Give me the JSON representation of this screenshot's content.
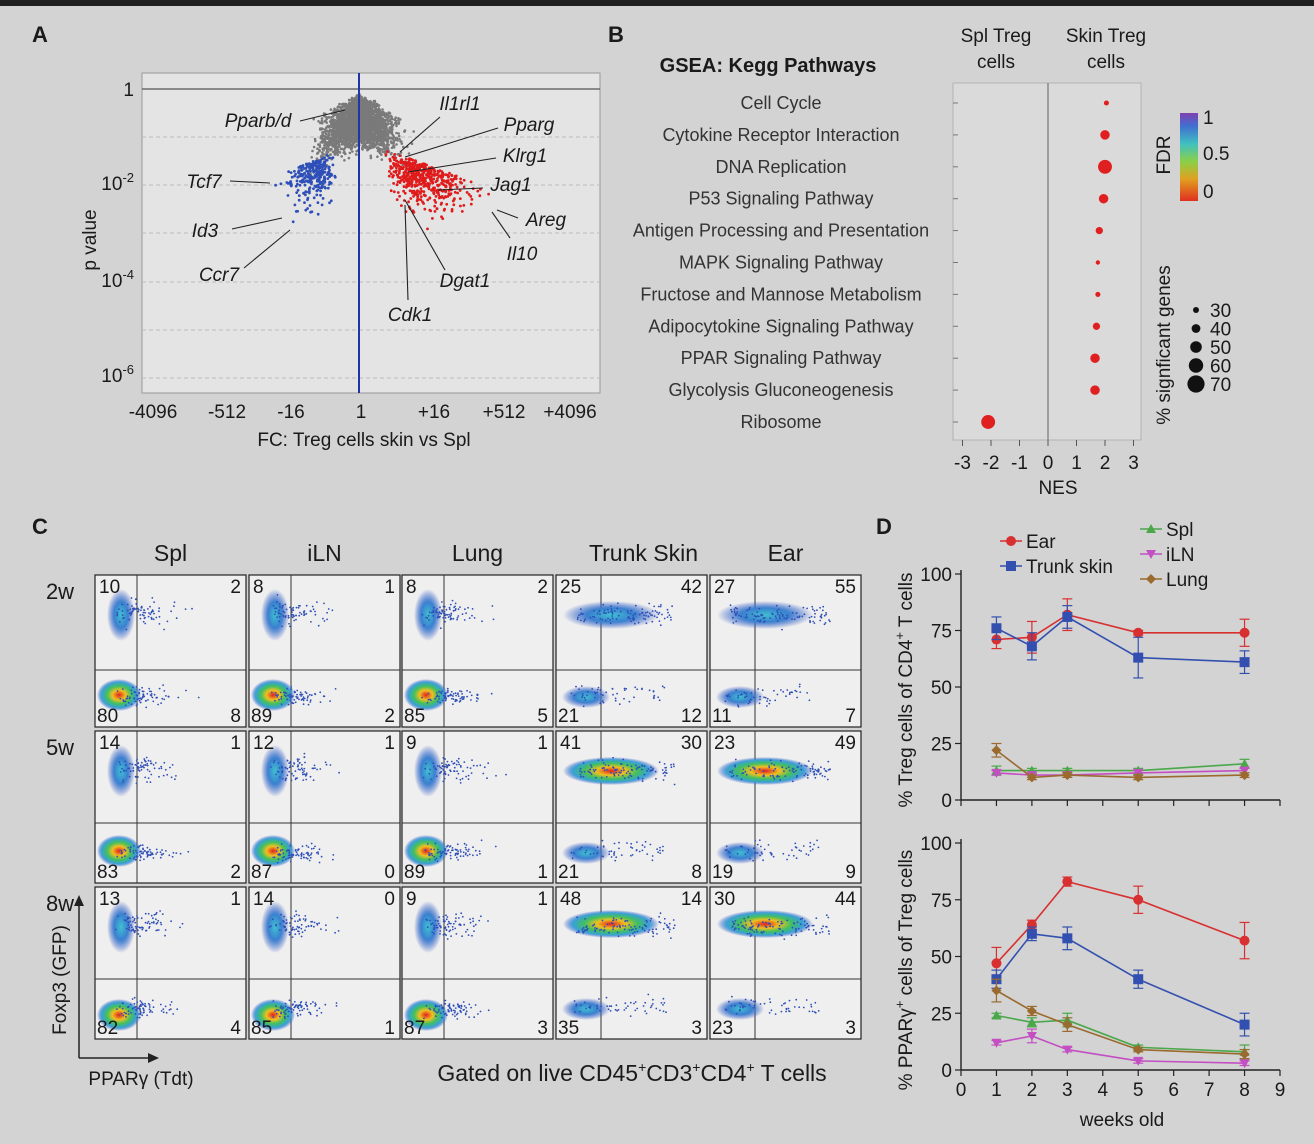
{
  "panels": {
    "a": "A",
    "b": "B",
    "c": "C",
    "d": "D"
  },
  "chart_data": [
    {
      "type": "scatter",
      "panel": "A",
      "xlabel": "FC: Treg cells skin vs Spl",
      "ylabel": "p value",
      "x_ticks": [
        "-4096",
        "-512",
        "-16",
        "1",
        "+16",
        "+512",
        "+4096"
      ],
      "y_ticks": [
        {
          "base": "1",
          "exp": ""
        },
        {
          "base": "10",
          "exp": "-2"
        },
        {
          "base": "10",
          "exp": "-4"
        },
        {
          "base": "10",
          "exp": "-6"
        }
      ],
      "labeled_genes": [
        {
          "name": "Pparb/d",
          "group": "down"
        },
        {
          "name": "Tcf7",
          "group": "down"
        },
        {
          "name": "Id3",
          "group": "down"
        },
        {
          "name": "Ccr7",
          "group": "down"
        },
        {
          "name": "Il1rl1",
          "group": "up"
        },
        {
          "name": "Pparg",
          "group": "up"
        },
        {
          "name": "Klrg1",
          "group": "up"
        },
        {
          "name": "Jag1",
          "group": "up"
        },
        {
          "name": "Areg",
          "group": "up"
        },
        {
          "name": "Il10",
          "group": "up"
        },
        {
          "name": "Dgat1",
          "group": "up"
        },
        {
          "name": "Cdk1",
          "group": "up"
        }
      ],
      "colors": {
        "up": "#e01b1b",
        "down": "#2f4fb8",
        "ns": "#7a7a7a",
        "axis_line": "#2234a8"
      }
    },
    {
      "type": "scatter",
      "panel": "B",
      "title": "GSEA: Kegg Pathways",
      "xlabel": "NES",
      "col_left": [
        "Spl Treg",
        "cells"
      ],
      "col_right": [
        "Skin Treg",
        "cells"
      ],
      "x_ticks": [
        "-3",
        "-2",
        "-1",
        "0",
        "1",
        "2",
        "3"
      ],
      "xlim": [
        -3,
        3
      ],
      "pathways": [
        {
          "name": "Cell Cycle",
          "nes": 2.05,
          "size": 30
        },
        {
          "name": "Cytokine Receptor Interaction",
          "nes": 2.0,
          "size": 50
        },
        {
          "name": "DNA Replication",
          "nes": 2.0,
          "size": 70
        },
        {
          "name": "P53 Signaling Pathway",
          "nes": 1.95,
          "size": 50
        },
        {
          "name": "Antigen Processing and Presentation",
          "nes": 1.8,
          "size": 40
        },
        {
          "name": "MAPK Signaling Pathway",
          "nes": 1.75,
          "size": 25
        },
        {
          "name": "Fructose and Mannose Metabolism",
          "nes": 1.75,
          "size": 30
        },
        {
          "name": "Adipocytokine Signaling Pathway",
          "nes": 1.7,
          "size": 40
        },
        {
          "name": "PPAR Signaling Pathway",
          "nes": 1.65,
          "size": 50
        },
        {
          "name": "Glycolysis Gluconeogenesis",
          "nes": 1.65,
          "size": 50
        },
        {
          "name": "Ribosome",
          "nes": -2.1,
          "size": 70
        }
      ],
      "fdr_legend": {
        "title": "FDR",
        "ticks": [
          "1",
          "0.5",
          "0"
        ]
      },
      "size_legend": {
        "title": "% signficant genes",
        "values": [
          "30",
          "40",
          "50",
          "60",
          "70"
        ]
      },
      "dot_color": "#e02020"
    },
    {
      "type": "scatter",
      "panel": "C",
      "xlabel": "PPARγ (Tdt)",
      "ylabel": "Foxp3 (GFP)",
      "gate_note": {
        "pre": "Gated on live CD45",
        "a": "CD3",
        "b": "CD4",
        "post": " T cells",
        "sup": "+"
      },
      "columns": [
        "Spl",
        "iLN",
        "Lung",
        "Trunk Skin",
        "Ear"
      ],
      "rows": [
        "2w",
        "5w",
        "8w"
      ],
      "quadrants": [
        [
          {
            "ul": "10",
            "ur": "2",
            "ll": "80",
            "lr": "8"
          },
          {
            "ul": "8",
            "ur": "1",
            "ll": "89",
            "lr": "2"
          },
          {
            "ul": "8",
            "ur": "2",
            "ll": "85",
            "lr": "5"
          },
          {
            "ul": "25",
            "ur": "42",
            "ll": "21",
            "lr": "12"
          },
          {
            "ul": "27",
            "ur": "55",
            "ll": "11",
            "lr": "7"
          }
        ],
        [
          {
            "ul": "14",
            "ur": "1",
            "ll": "83",
            "lr": "2"
          },
          {
            "ul": "12",
            "ur": "1",
            "ll": "87",
            "lr": "0"
          },
          {
            "ul": "9",
            "ur": "1",
            "ll": "89",
            "lr": "1"
          },
          {
            "ul": "41",
            "ur": "30",
            "ll": "21",
            "lr": "8"
          },
          {
            "ul": "23",
            "ur": "49",
            "ll": "19",
            "lr": "9"
          }
        ],
        [
          {
            "ul": "13",
            "ur": "1",
            "ll": "82",
            "lr": "4"
          },
          {
            "ul": "14",
            "ur": "0",
            "ll": "85",
            "lr": "1"
          },
          {
            "ul": "9",
            "ur": "1",
            "ll": "87",
            "lr": "3"
          },
          {
            "ul": "48",
            "ur": "14",
            "ll": "35",
            "lr": "3"
          },
          {
            "ul": "30",
            "ur": "44",
            "ll": "23",
            "lr": "3"
          }
        ]
      ]
    },
    {
      "type": "line",
      "panel": "D-top",
      "ylabel": {
        "pre": "% Treg cells of CD4",
        "sup": "+",
        "post": " T cells"
      },
      "ylim": [
        0,
        100
      ],
      "y_ticks": [
        "0",
        "25",
        "50",
        "75",
        "100"
      ],
      "xlim": [
        0,
        9
      ],
      "legend": [
        "Ear",
        "Trunk skin",
        "Spl",
        "iLN",
        "Lung"
      ],
      "series": [
        {
          "name": "Ear",
          "color": "#d83030",
          "marker": "circle",
          "x": [
            1,
            2,
            3,
            5,
            8
          ],
          "y": [
            71,
            72,
            82,
            74,
            74
          ],
          "err": [
            4,
            7,
            7,
            1,
            6
          ]
        },
        {
          "name": "Trunk skin",
          "color": "#3350b0",
          "marker": "square",
          "x": [
            1,
            2,
            3,
            5,
            8
          ],
          "y": [
            76,
            68,
            81,
            63,
            61
          ],
          "err": [
            5,
            6,
            5,
            9,
            5
          ]
        },
        {
          "name": "Spl",
          "color": "#4aa84a",
          "marker": "triangle",
          "x": [
            1,
            2,
            3,
            5,
            8
          ],
          "y": [
            13,
            13,
            13,
            13,
            16
          ],
          "err": [
            2,
            1,
            1,
            1,
            2
          ]
        },
        {
          "name": "iLN",
          "color": "#c34fc3",
          "marker": "triangle-down",
          "x": [
            1,
            2,
            3,
            5,
            8
          ],
          "y": [
            12,
            11,
            11,
            12,
            13
          ],
          "err": [
            1,
            1,
            1,
            1,
            1
          ]
        },
        {
          "name": "Lung",
          "color": "#9a6a2f",
          "marker": "diamond",
          "x": [
            1,
            2,
            3,
            5,
            8
          ],
          "y": [
            22,
            10,
            11,
            10,
            11
          ],
          "err": [
            3,
            1,
            1,
            1,
            1
          ]
        }
      ]
    },
    {
      "type": "line",
      "panel": "D-bottom",
      "ylabel": {
        "pre": "% PPARγ",
        "sup": "+",
        "post": " cells of Treg cells"
      },
      "xlabel": "weeks old",
      "ylim": [
        0,
        100
      ],
      "y_ticks": [
        "0",
        "25",
        "50",
        "75",
        "100"
      ],
      "xlim": [
        0,
        9
      ],
      "x_ticks": [
        "0",
        "1",
        "2",
        "3",
        "4",
        "5",
        "6",
        "7",
        "8",
        "9"
      ],
      "series": [
        {
          "name": "Ear",
          "color": "#d83030",
          "marker": "circle",
          "x": [
            1,
            2,
            3,
            5,
            8
          ],
          "y": [
            47,
            64,
            83,
            75,
            57
          ],
          "err": [
            7,
            2,
            2,
            6,
            8
          ]
        },
        {
          "name": "Trunk skin",
          "color": "#3350b0",
          "marker": "square",
          "x": [
            1,
            2,
            3,
            5,
            8
          ],
          "y": [
            40,
            60,
            58,
            40,
            20
          ],
          "err": [
            4,
            3,
            5,
            4,
            5
          ]
        },
        {
          "name": "Spl",
          "color": "#4aa84a",
          "marker": "triangle",
          "x": [
            1,
            2,
            3,
            5,
            8
          ],
          "y": [
            24,
            21,
            22,
            10,
            8
          ],
          "err": [
            1,
            2,
            3,
            1,
            3
          ]
        },
        {
          "name": "iLN",
          "color": "#c34fc3",
          "marker": "triangle-down",
          "x": [
            1,
            2,
            3,
            5,
            8
          ],
          "y": [
            12,
            15,
            9,
            4,
            3
          ],
          "err": [
            1,
            3,
            1,
            1,
            1
          ]
        },
        {
          "name": "Lung",
          "color": "#9a6a2f",
          "marker": "diamond",
          "x": [
            1,
            2,
            3,
            5,
            8
          ],
          "y": [
            35,
            26,
            20,
            9,
            7
          ],
          "err": [
            5,
            2,
            3,
            1,
            2
          ]
        }
      ]
    }
  ]
}
